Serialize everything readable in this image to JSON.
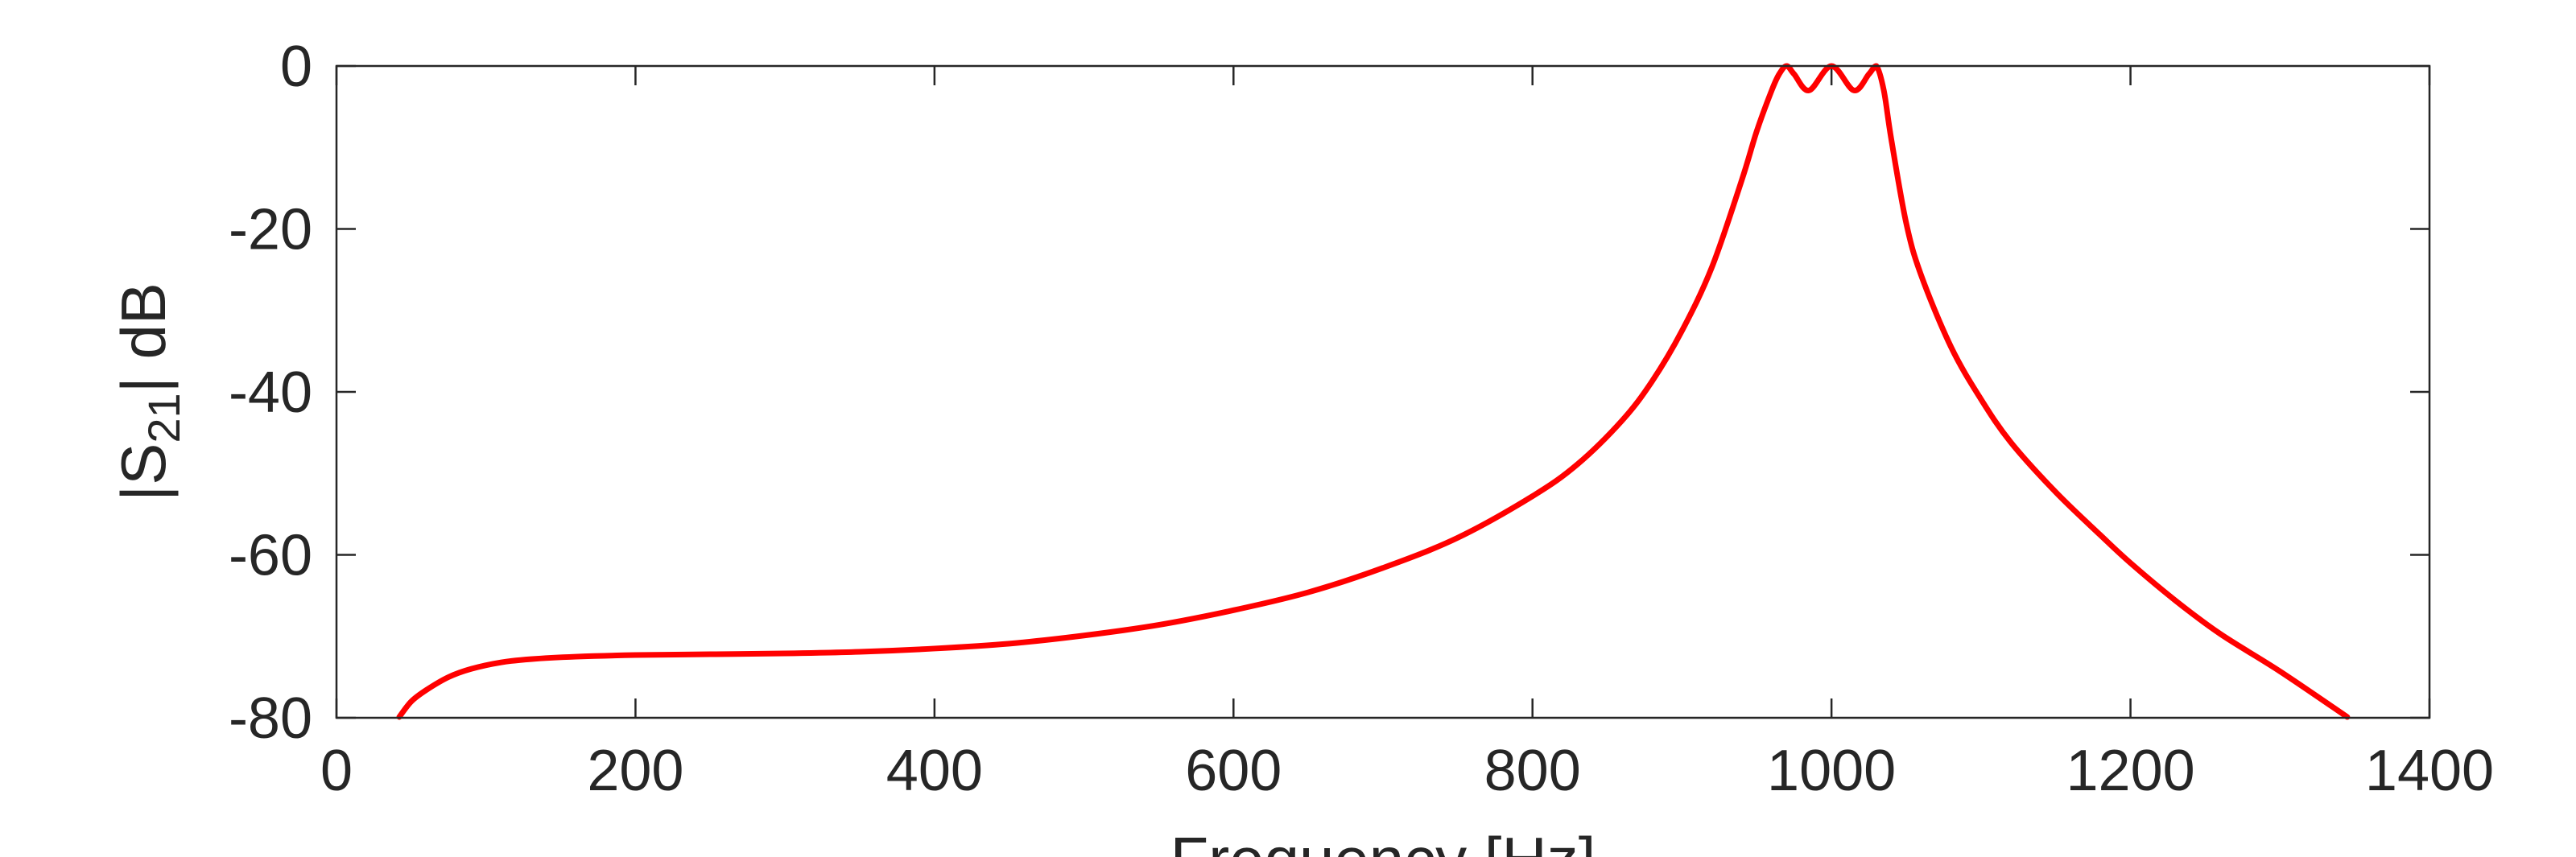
{
  "chart_data": {
    "type": "line",
    "xlabel": "Frequency [Hz]",
    "ylabel": {
      "prefix": "|S",
      "subscript": "21",
      "suffix": "| dB"
    },
    "xlim": [
      0,
      1400
    ],
    "ylim": [
      -80,
      0
    ],
    "xticks": [
      0,
      200,
      400,
      600,
      800,
      1000,
      1200,
      1400
    ],
    "yticks": [
      0,
      -20,
      -40,
      -60,
      -80
    ],
    "grid": false,
    "colors": {
      "line": "#ff0000",
      "axis": "#262626"
    },
    "series": [
      {
        "x": [
          42,
          50,
          60,
          75,
          90,
          110,
          130,
          160,
          200,
          250,
          300,
          350,
          400,
          450,
          500,
          550,
          600,
          650,
          700,
          750,
          800,
          830,
          860,
          880,
          900,
          920,
          940,
          950,
          960,
          965,
          970,
          975,
          985,
          1000,
          1015,
          1025,
          1030,
          1035,
          1040,
          1050,
          1060,
          1080,
          1100,
          1120,
          1150,
          1180,
          1200,
          1230,
          1260,
          1300,
          1345
        ],
        "y": [
          -79.9,
          -78.0,
          -76.6,
          -75.0,
          -74.0,
          -73.2,
          -72.8,
          -72.5,
          -72.3,
          -72.2,
          -72.1,
          -71.9,
          -71.5,
          -70.9,
          -69.9,
          -68.6,
          -66.8,
          -64.6,
          -61.6,
          -57.9,
          -52.8,
          -48.9,
          -43.5,
          -38.7,
          -32.5,
          -24.7,
          -14.0,
          -8.0,
          -3.0,
          -1.0,
          0.0,
          -1.0,
          -3.0,
          0.0,
          -3.0,
          -1.0,
          0.0,
          -3.0,
          -9.0,
          -19.3,
          -25.7,
          -34.5,
          -40.9,
          -46.2,
          -52.3,
          -57.6,
          -61.0,
          -65.6,
          -69.7,
          -74.3,
          -79.9
        ]
      }
    ]
  }
}
